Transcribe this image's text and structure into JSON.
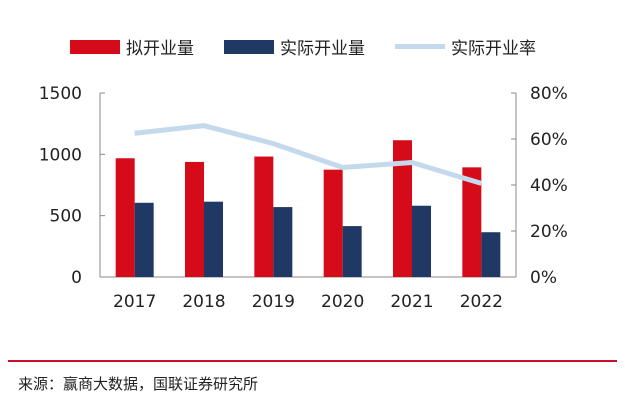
{
  "chart_data": {
    "type": "bar",
    "categories": [
      "2017",
      "2018",
      "2019",
      "2020",
      "2021",
      "2022"
    ],
    "series": [
      {
        "name": "拟开业量",
        "type": "bar",
        "axis": "left",
        "color": "#d50b1a",
        "values": [
          968,
          938,
          982,
          875,
          1115,
          894
        ]
      },
      {
        "name": "实际开业量",
        "type": "bar",
        "axis": "left",
        "color": "#1f3864",
        "values": [
          605,
          614,
          570,
          415,
          581,
          365
        ]
      },
      {
        "name": "实际开业率",
        "type": "line",
        "axis": "right",
        "color": "#c5d9ec",
        "values": [
          62.5,
          65.8,
          58.0,
          47.6,
          49.8,
          40.7
        ]
      }
    ],
    "y_left": {
      "ylim": [
        0,
        1500
      ],
      "ticks": [
        "0",
        "500",
        "1000",
        "1500"
      ],
      "tick_values": [
        0,
        500,
        1000,
        1500
      ]
    },
    "y_right": {
      "ylim": [
        0,
        80
      ],
      "ticks": [
        "0%",
        "20%",
        "40%",
        "60%",
        "80%"
      ],
      "tick_values": [
        0,
        20,
        40,
        60,
        80
      ]
    },
    "legend_position": "top",
    "grid": false
  },
  "source": "来源：赢商大数据，国联证券研究所"
}
